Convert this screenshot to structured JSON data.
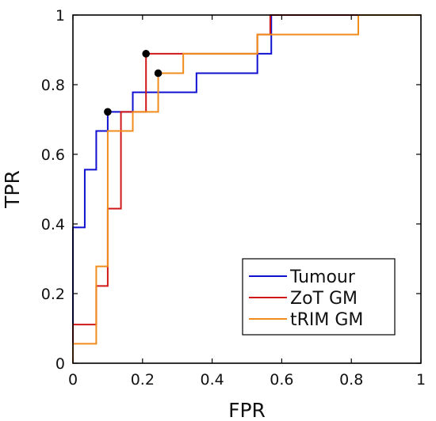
{
  "chart_data": {
    "type": "line",
    "title": "",
    "xlabel": "FPR",
    "ylabel": "TPR",
    "xlim": [
      0,
      1
    ],
    "ylim": [
      0,
      1
    ],
    "xticks": [
      "0",
      "0.2",
      "0.4",
      "0.6",
      "0.8",
      "1"
    ],
    "yticks": [
      "0",
      "0.2",
      "0.4",
      "0.6",
      "0.8",
      "1"
    ],
    "grid": false,
    "legend_position": "bottom-right",
    "series": [
      {
        "name": "Tumour",
        "color": "#1010d0",
        "points": [
          [
            0,
            0
          ],
          [
            0,
            0.39
          ],
          [
            0.034,
            0.39
          ],
          [
            0.034,
            0.556
          ],
          [
            0.067,
            0.556
          ],
          [
            0.067,
            0.667
          ],
          [
            0.1,
            0.667
          ],
          [
            0.1,
            0.722
          ],
          [
            0.172,
            0.722
          ],
          [
            0.172,
            0.778
          ],
          [
            0.355,
            0.778
          ],
          [
            0.355,
            0.833
          ],
          [
            0.53,
            0.833
          ],
          [
            0.53,
            0.889
          ],
          [
            0.57,
            0.889
          ],
          [
            0.57,
            1
          ],
          [
            1,
            1
          ]
        ],
        "marker": [
          0.1,
          0.722
        ]
      },
      {
        "name": "ZoT GM",
        "color": "#d01818",
        "points": [
          [
            0,
            0
          ],
          [
            0,
            0.111
          ],
          [
            0.067,
            0.111
          ],
          [
            0.067,
            0.222
          ],
          [
            0.1,
            0.222
          ],
          [
            0.1,
            0.444
          ],
          [
            0.138,
            0.444
          ],
          [
            0.138,
            0.722
          ],
          [
            0.21,
            0.722
          ],
          [
            0.21,
            0.889
          ],
          [
            0.53,
            0.889
          ],
          [
            0.53,
            0.944
          ],
          [
            0.567,
            0.944
          ],
          [
            0.567,
            1
          ],
          [
            1,
            1
          ]
        ],
        "marker": [
          0.21,
          0.889
        ]
      },
      {
        "name": "tRIM GM",
        "color": "#f08c1c",
        "points": [
          [
            0,
            0
          ],
          [
            0,
            0.056
          ],
          [
            0.067,
            0.056
          ],
          [
            0.067,
            0.278
          ],
          [
            0.1,
            0.278
          ],
          [
            0.1,
            0.667
          ],
          [
            0.172,
            0.667
          ],
          [
            0.172,
            0.722
          ],
          [
            0.245,
            0.722
          ],
          [
            0.245,
            0.833
          ],
          [
            0.317,
            0.833
          ],
          [
            0.317,
            0.889
          ],
          [
            0.53,
            0.889
          ],
          [
            0.53,
            0.944
          ],
          [
            0.82,
            0.944
          ],
          [
            0.82,
            1
          ],
          [
            1,
            1
          ]
        ],
        "marker": [
          0.245,
          0.833
        ]
      }
    ]
  }
}
